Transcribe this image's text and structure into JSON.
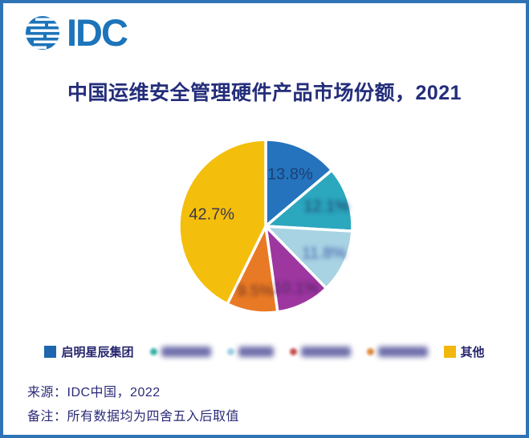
{
  "frame": {
    "border_color": "#2E74B5",
    "background": "#FFFFFF"
  },
  "header": {
    "logo_icon": "idc-globe-icon",
    "logo_text": "IDC",
    "logo_color": "#1C74BA"
  },
  "title": "中国运维安全管理硬件产品市场份额，2021",
  "chart_data": {
    "type": "pie",
    "title": "中国运维安全管理硬件产品市场份额，2021",
    "direction": "clockwise",
    "start_at": "top",
    "center": [
      327,
      278
    ],
    "radius": 108,
    "gap_stroke": {
      "color": "#FFFFFF",
      "width": 3.5
    },
    "slices": [
      {
        "name": "启明星辰集团",
        "value": 13.8,
        "color": "#2473BC",
        "label": "13.8%",
        "label_visible": true,
        "label_color": "#1C3F77",
        "label_radius": 0.67
      },
      {
        "name": "",
        "redacted": true,
        "value": 12.1,
        "color": "#2BA7BE",
        "label": "12.1%",
        "label_visible": false,
        "label_color": "#203864",
        "label_radius": 0.74
      },
      {
        "name": "",
        "redacted": true,
        "value": 11.8,
        "color": "#A8D3E3",
        "label": "11.8%",
        "label_visible": false,
        "label_color": "#3C5AA8",
        "label_radius": 0.74
      },
      {
        "name": "",
        "redacted": true,
        "value": 10.1,
        "color": "#9E36A0",
        "label": "10.1%",
        "label_visible": false,
        "label_color": "#4A2060",
        "label_radius": 0.79
      },
      {
        "name": "",
        "redacted": true,
        "value": 9.5,
        "color": "#E97A25",
        "label": "9.5%",
        "label_visible": false,
        "label_color": "#703020",
        "label_radius": 0.75
      },
      {
        "name": "其他",
        "value": 42.7,
        "color": "#F4BE0C",
        "label": "42.7%",
        "label_visible": true,
        "label_color": "#38384E",
        "label_radius": 0.64
      }
    ],
    "note_on_redaction": "four middle slice percentage labels are blurred/illegible in the source image; their values are geometric estimates"
  },
  "legend": {
    "items": [
      {
        "label": "启明星辰集团",
        "marker": "square",
        "marker_color": "#1E66AE",
        "redacted": false
      },
      {
        "label": "",
        "marker": "dot",
        "marker_color": "#35B0A5",
        "redacted": true,
        "redacted_width": 62
      },
      {
        "label": "",
        "marker": "dot",
        "marker_color": "#9ECFE4",
        "redacted": true,
        "redacted_width": 44
      },
      {
        "label": "",
        "marker": "dot",
        "marker_color": "#C4504E",
        "redacted": true,
        "redacted_width": 62
      },
      {
        "label": "",
        "marker": "dot",
        "marker_color": "#E08A3C",
        "redacted": true,
        "redacted_width": 62
      },
      {
        "label": "其他",
        "marker": "square",
        "marker_color": "#F2B70D",
        "redacted": false
      }
    ]
  },
  "footer": {
    "source": "来源：IDC中国，2022",
    "note": "备注：所有数据均为四舍五入后取值"
  }
}
